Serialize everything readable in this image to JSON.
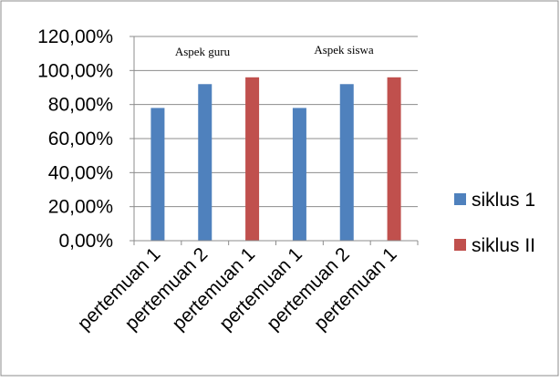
{
  "chart_data": {
    "type": "bar",
    "categories": [
      "pertemuan 1",
      "pertemuan 2",
      "pertemuan 1",
      "pertemuan 1",
      "pertemuan 2",
      "pertemuan 1"
    ],
    "series": [
      {
        "name": "siklus 1",
        "values": [
          0.78,
          0.92,
          null,
          0.78,
          0.92,
          null
        ]
      },
      {
        "name": "siklus II",
        "values": [
          null,
          null,
          0.96,
          null,
          null,
          0.96
        ]
      }
    ],
    "colors": {
      "siklus 1": "#4f81bd",
      "siklus II": "#c0504d"
    },
    "ylim": [
      0,
      1.2
    ],
    "yticks": [
      {
        "value": 0.0,
        "label": "0,00%"
      },
      {
        "value": 0.2,
        "label": "20,00%"
      },
      {
        "value": 0.4,
        "label": "40,00%"
      },
      {
        "value": 0.6,
        "label": "60,00%"
      },
      {
        "value": 0.8,
        "label": "80,00%"
      },
      {
        "value": 1.0,
        "label": "100,00%"
      },
      {
        "value": 1.2,
        "label": "120,00%"
      }
    ],
    "annotations": [
      "Aspek guru",
      "Aspek siswa"
    ],
    "legend_position": "right",
    "grid": true
  }
}
